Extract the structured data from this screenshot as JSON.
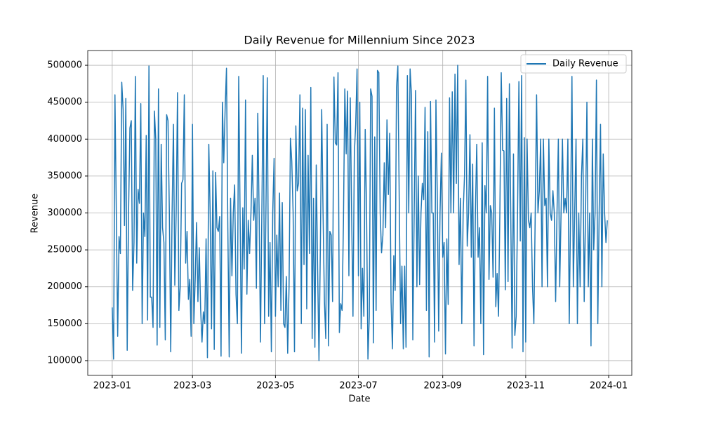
{
  "chart_data": {
    "type": "line",
    "title": "Daily Revenue for Millennium Since 2023",
    "xlabel": "Date",
    "ylabel": "Revenue",
    "x": [
      "2023-01-01",
      "2023-01-02",
      "2023-01-03",
      "2023-01-04",
      "2023-01-05",
      "2023-01-06",
      "2023-01-07",
      "2023-01-08",
      "2023-01-09",
      "2023-01-10",
      "2023-01-11",
      "2023-01-12",
      "2023-01-13",
      "2023-01-14",
      "2023-01-15",
      "2023-01-16",
      "2023-01-17",
      "2023-01-18",
      "2023-01-19",
      "2023-01-20",
      "2023-01-21",
      "2023-01-22",
      "2023-01-23",
      "2023-01-24",
      "2023-01-25",
      "2023-01-26",
      "2023-01-27",
      "2023-01-28",
      "2023-01-29",
      "2023-01-30",
      "2023-01-31",
      "2023-02-01",
      "2023-02-02",
      "2023-02-03",
      "2023-02-04",
      "2023-02-05",
      "2023-02-06",
      "2023-02-07",
      "2023-02-08",
      "2023-02-09",
      "2023-02-10",
      "2023-02-11",
      "2023-02-12",
      "2023-02-13",
      "2023-02-14",
      "2023-02-15",
      "2023-02-16",
      "2023-02-17",
      "2023-02-18",
      "2023-02-19",
      "2023-02-20",
      "2023-02-21",
      "2023-02-22",
      "2023-02-23",
      "2023-02-24",
      "2023-02-25",
      "2023-02-26",
      "2023-02-27",
      "2023-02-28",
      "2023-03-01",
      "2023-03-02",
      "2023-03-03",
      "2023-03-04",
      "2023-03-05",
      "2023-03-06",
      "2023-03-07",
      "2023-03-08",
      "2023-03-09",
      "2023-03-10",
      "2023-03-11",
      "2023-03-12",
      "2023-03-13",
      "2023-03-14",
      "2023-03-15",
      "2023-03-16",
      "2023-03-17",
      "2023-03-18",
      "2023-03-19",
      "2023-03-20",
      "2023-03-21",
      "2023-03-22",
      "2023-03-23",
      "2023-03-24",
      "2023-03-25",
      "2023-03-26",
      "2023-03-27",
      "2023-03-28",
      "2023-03-29",
      "2023-03-30",
      "2023-03-31",
      "2023-04-01",
      "2023-04-02",
      "2023-04-03",
      "2023-04-04",
      "2023-04-05",
      "2023-04-06",
      "2023-04-07",
      "2023-04-08",
      "2023-04-09",
      "2023-04-10",
      "2023-04-11",
      "2023-04-12",
      "2023-04-13",
      "2023-04-14",
      "2023-04-15",
      "2023-04-16",
      "2023-04-17",
      "2023-04-18",
      "2023-04-19",
      "2023-04-20",
      "2023-04-21",
      "2023-04-22",
      "2023-04-23",
      "2023-04-24",
      "2023-04-25",
      "2023-04-26",
      "2023-04-27",
      "2023-04-28",
      "2023-04-29",
      "2023-04-30",
      "2023-05-01",
      "2023-05-02",
      "2023-05-03",
      "2023-05-04",
      "2023-05-05",
      "2023-05-06",
      "2023-05-07",
      "2023-05-08",
      "2023-05-09",
      "2023-05-10",
      "2023-05-11",
      "2023-05-12",
      "2023-05-13",
      "2023-05-14",
      "2023-05-15",
      "2023-05-16",
      "2023-05-17",
      "2023-05-18",
      "2023-05-19",
      "2023-05-20",
      "2023-05-21",
      "2023-05-22",
      "2023-05-23",
      "2023-05-24",
      "2023-05-25",
      "2023-05-26",
      "2023-05-27",
      "2023-05-28",
      "2023-05-29",
      "2023-05-30",
      "2023-05-31",
      "2023-06-01",
      "2023-06-02",
      "2023-06-03",
      "2023-06-04",
      "2023-06-05",
      "2023-06-06",
      "2023-06-07",
      "2023-06-08",
      "2023-06-09",
      "2023-06-10",
      "2023-06-11",
      "2023-06-12",
      "2023-06-13",
      "2023-06-14",
      "2023-06-15",
      "2023-06-16",
      "2023-06-17",
      "2023-06-18",
      "2023-06-19",
      "2023-06-20",
      "2023-06-21",
      "2023-06-22",
      "2023-06-23",
      "2023-06-24",
      "2023-06-25",
      "2023-06-26",
      "2023-06-27",
      "2023-06-28",
      "2023-06-29",
      "2023-06-30",
      "2023-07-01",
      "2023-07-02",
      "2023-07-03",
      "2023-07-04",
      "2023-07-05",
      "2023-07-06",
      "2023-07-07",
      "2023-07-08",
      "2023-07-09",
      "2023-07-10",
      "2023-07-11",
      "2023-07-12",
      "2023-07-13",
      "2023-07-14",
      "2023-07-15",
      "2023-07-16",
      "2023-07-17",
      "2023-07-18",
      "2023-07-19",
      "2023-07-20",
      "2023-07-21",
      "2023-07-22",
      "2023-07-23",
      "2023-07-24",
      "2023-07-25",
      "2023-07-26",
      "2023-07-27",
      "2023-07-28",
      "2023-07-29",
      "2023-07-30",
      "2023-07-31",
      "2023-08-01",
      "2023-08-02",
      "2023-08-03",
      "2023-08-04",
      "2023-08-05",
      "2023-08-06",
      "2023-08-07",
      "2023-08-08",
      "2023-08-09",
      "2023-08-10",
      "2023-08-11",
      "2023-08-12",
      "2023-08-13",
      "2023-08-14",
      "2023-08-15",
      "2023-08-16",
      "2023-08-17",
      "2023-08-18",
      "2023-08-19",
      "2023-08-20",
      "2023-08-21",
      "2023-08-22",
      "2023-08-23",
      "2023-08-24",
      "2023-08-25",
      "2023-08-26",
      "2023-08-27",
      "2023-08-28",
      "2023-08-29",
      "2023-08-30",
      "2023-08-31",
      "2023-09-01",
      "2023-09-02",
      "2023-09-03",
      "2023-09-04",
      "2023-09-05",
      "2023-09-06",
      "2023-09-07",
      "2023-09-08",
      "2023-09-09",
      "2023-09-10",
      "2023-09-11",
      "2023-09-12",
      "2023-09-13",
      "2023-09-14",
      "2023-09-15",
      "2023-09-16",
      "2023-09-17",
      "2023-09-18",
      "2023-09-19",
      "2023-09-20",
      "2023-09-21",
      "2023-09-22",
      "2023-09-23",
      "2023-09-24",
      "2023-09-25",
      "2023-09-26",
      "2023-09-27",
      "2023-09-28",
      "2023-09-29",
      "2023-09-30",
      "2023-10-01",
      "2023-10-02",
      "2023-10-03",
      "2023-10-04",
      "2023-10-05",
      "2023-10-06",
      "2023-10-07",
      "2023-10-08",
      "2023-10-09",
      "2023-10-10",
      "2023-10-11",
      "2023-10-12",
      "2023-10-13",
      "2023-10-14",
      "2023-10-15",
      "2023-10-16",
      "2023-10-17",
      "2023-10-18",
      "2023-10-19",
      "2023-10-20",
      "2023-10-21",
      "2023-10-22",
      "2023-10-23",
      "2023-10-24",
      "2023-10-25",
      "2023-10-26",
      "2023-10-27",
      "2023-10-28",
      "2023-10-29",
      "2023-10-30",
      "2023-10-31",
      "2023-11-01",
      "2023-11-02",
      "2023-11-03",
      "2023-11-04",
      "2023-11-05",
      "2023-11-06",
      "2023-11-07",
      "2023-11-08",
      "2023-11-09",
      "2023-11-10",
      "2023-11-11",
      "2023-11-12",
      "2023-11-13",
      "2023-11-14",
      "2023-11-15",
      "2023-11-16",
      "2023-11-17",
      "2023-11-18",
      "2023-11-19",
      "2023-11-20",
      "2023-11-21",
      "2023-11-22",
      "2023-11-23",
      "2023-11-24",
      "2023-11-25",
      "2023-11-26",
      "2023-11-27",
      "2023-11-28",
      "2023-11-29",
      "2023-11-30",
      "2023-12-01",
      "2023-12-02",
      "2023-12-03",
      "2023-12-04",
      "2023-12-05",
      "2023-12-06",
      "2023-12-07",
      "2023-12-08",
      "2023-12-09",
      "2023-12-10",
      "2023-12-11",
      "2023-12-12",
      "2023-12-13",
      "2023-12-14",
      "2023-12-15",
      "2023-12-16",
      "2023-12-17",
      "2023-12-18",
      "2023-12-19",
      "2023-12-20",
      "2023-12-21",
      "2023-12-22",
      "2023-12-23",
      "2023-12-24",
      "2023-12-25",
      "2023-12-26",
      "2023-12-27",
      "2023-12-28",
      "2023-12-29",
      "2023-12-30",
      "2023-12-31"
    ],
    "series": [
      {
        "name": "Daily Revenue",
        "color": "#1f77b4",
        "values": [
          172000,
          102000,
          460000,
          300000,
          133000,
          268000,
          245000,
          477000,
          440000,
          283000,
          455000,
          114000,
          300000,
          415000,
          425000,
          195000,
          260000,
          485000,
          232000,
          332000,
          313000,
          448000,
          150000,
          300000,
          268000,
          405000,
          155000,
          499000,
          186000,
          186000,
          145000,
          438000,
          400000,
          121000,
          468000,
          145000,
          393000,
          280000,
          260000,
          128000,
          433000,
          425000,
          300000,
          112000,
          300000,
          420000,
          202000,
          300000,
          463000,
          168000,
          200000,
          340000,
          345000,
          460000,
          232000,
          275000,
          183000,
          210000,
          133000,
          420000,
          150000,
          210000,
          287000,
          180000,
          253000,
          170000,
          125000,
          166000,
          150000,
          265000,
          104000,
          393000,
          300000,
          143000,
          357000,
          115000,
          355000,
          280000,
          275000,
          295000,
          106000,
          450000,
          368000,
          440000,
          496000,
          280000,
          105000,
          320000,
          215000,
          300000,
          338000,
          190000,
          150000,
          485000,
          300000,
          110000,
          307000,
          224000,
          453000,
          190000,
          290000,
          245000,
          300000,
          378000,
          290000,
          320000,
          198000,
          435000,
          300000,
          125000,
          300000,
          486000,
          150000,
          300000,
          483000,
          160000,
          260000,
          112000,
          300000,
          374000,
          160000,
          270000,
          200000,
          327000,
          168000,
          314000,
          150000,
          145000,
          214000,
          110000,
          200000,
          401000,
          370000,
          300000,
          112000,
          418000,
          330000,
          340000,
          460000,
          150000,
          442000,
          230000,
          440000,
          170000,
          378000,
          245000,
          470000,
          130000,
          320000,
          118000,
          365000,
          225000,
          100000,
          250000,
          440000,
          300000,
          180000,
          130000,
          420000,
          120000,
          275000,
          270000,
          180000,
          484000,
          395000,
          392000,
          490000,
          138000,
          177000,
          168000,
          290000,
          468000,
          380000,
          465000,
          215000,
          456000,
          300000,
          160000,
          380000,
          420000,
          495000,
          215000,
          450000,
          143000,
          225000,
          160000,
          413000,
          300000,
          102000,
          160000,
          468000,
          458000,
          124000,
          403000,
          168000,
          493000,
          490000,
          300000,
          246000,
          270000,
          368000,
          280000,
          426000,
          325000,
          408000,
          180000,
          116000,
          242000,
          195000,
          470000,
          499000,
          320000,
          150000,
          228000,
          116000,
          228000,
          118000,
          486000,
          300000,
          495000,
          460000,
          128000,
          300000,
          466000,
          200000,
          350000,
          203000,
          300000,
          340000,
          318000,
          443000,
          168000,
          410000,
          105000,
          451000,
          300000,
          300000,
          125000,
          453000,
          320000,
          140000,
          300000,
          381000,
          240000,
          260000,
          109000,
          265000,
          176000,
          456000,
          300000,
          464000,
          300000,
          488000,
          340000,
          500000,
          230000,
          320000,
          150000,
          300000,
          350000,
          480000,
          255000,
          300000,
          406000,
          240000,
          366000,
          120000,
          300000,
          393000,
          240000,
          280000,
          150000,
          395000,
          108000,
          337000,
          300000,
          485000,
          210000,
          310000,
          300000,
          213000,
          442000,
          173000,
          218000,
          160000,
          300000,
          490000,
          385000,
          384000,
          196000,
          455000,
          207000,
          475000,
          300000,
          117000,
          380000,
          134000,
          160000,
          300000,
          478000,
          262000,
          486000,
          112000,
          402000,
          125000,
          400000,
          290000,
          280000,
          300000,
          200000,
          150000,
          300000,
          460000,
          300000,
          330000,
          400000,
          200000,
          400000,
          310000,
          320000,
          200000,
          400000,
          300000,
          290000,
          330000,
          300000,
          180000,
          300000,
          400000,
          200000,
          300000,
          400000,
          300000,
          320000,
          300000,
          400000,
          150000,
          300000,
          485000,
          200000,
          300000,
          400000,
          150000,
          300000,
          200000,
          350000,
          400000,
          180000,
          300000,
          450000,
          200000,
          300000,
          120000,
          400000,
          250000,
          300000,
          480000,
          150000,
          300000,
          420000,
          200000,
          380000,
          300000,
          260000,
          290000
        ]
      }
    ],
    "xlim": [
      "2022-12-14",
      "2024-01-18"
    ],
    "xticks": [
      "2023-01",
      "2023-03",
      "2023-05",
      "2023-07",
      "2023-09",
      "2023-11",
      "2024-01"
    ],
    "ylim": [
      80000,
      520000
    ],
    "yticks": [
      100000,
      150000,
      200000,
      250000,
      300000,
      350000,
      400000,
      450000,
      500000
    ],
    "grid": true,
    "legend": "upper right"
  }
}
